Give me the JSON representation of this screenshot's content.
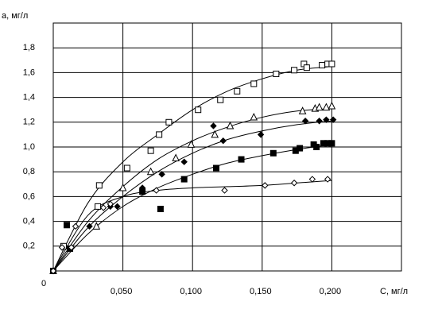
{
  "chart_data": {
    "type": "scatter",
    "x_label": "С, мг/л",
    "y_label": "а, мг/л",
    "xlim": [
      0,
      0.25
    ],
    "ylim": [
      0,
      2.0
    ],
    "xticks": [
      0,
      {
        "value": 0.05,
        "label": "0,050"
      },
      {
        "value": 0.1,
        "label": "0,100"
      },
      {
        "value": 0.15,
        "label": "0,150"
      },
      {
        "value": 0.2,
        "label": "0,200"
      }
    ],
    "yticks": [
      {
        "value": 0.2,
        "label": "0,2"
      },
      {
        "value": 0.4,
        "label": "0,4"
      },
      {
        "value": 0.6,
        "label": "0,6"
      },
      {
        "value": 0.8,
        "label": "0,8"
      },
      {
        "value": 1.0,
        "label": "1,0"
      },
      {
        "value": 1.2,
        "label": "1,2"
      },
      {
        "value": 1.4,
        "label": "1,4"
      },
      {
        "value": 1.6,
        "label": "1,6"
      },
      {
        "value": 1.8,
        "label": "1,8"
      }
    ],
    "grid": true,
    "series": [
      {
        "marker": "square-open",
        "color": "#000000",
        "x": [
          0,
          0.0074,
          0.032,
          0.033,
          0.053,
          0.07,
          0.076,
          0.083,
          0.104,
          0.12,
          0.132,
          0.144,
          0.16,
          0.173,
          0.18,
          0.182,
          0.193,
          0.197,
          0.2
        ],
        "values": [
          0,
          0.2,
          0.52,
          0.69,
          0.83,
          0.97,
          1.1,
          1.2,
          1.3,
          1.38,
          1.45,
          1.51,
          1.59,
          1.62,
          1.67,
          1.64,
          1.66,
          1.67,
          1.67
        ]
      },
      {
        "marker": "triangle-open",
        "color": "#000000",
        "x": [
          0,
          0.031,
          0.05,
          0.07,
          0.088,
          0.099,
          0.116,
          0.127,
          0.144,
          0.179,
          0.188,
          0.191,
          0.196,
          0.2
        ],
        "values": [
          0,
          0.36,
          0.67,
          0.8,
          0.91,
          1.02,
          1.1,
          1.17,
          1.24,
          1.29,
          1.31,
          1.32,
          1.32,
          1.33
        ]
      },
      {
        "marker": "diamond-filled",
        "color": "#000000",
        "x": [
          0,
          0.026,
          0.041,
          0.046,
          0.064,
          0.078,
          0.094,
          0.115,
          0.122,
          0.149,
          0.181,
          0.191,
          0.196,
          0.201
        ],
        "values": [
          0,
          0.36,
          0.52,
          0.52,
          0.67,
          0.78,
          0.88,
          1.17,
          1.05,
          1.1,
          1.21,
          1.21,
          1.22,
          1.22
        ]
      },
      {
        "marker": "square-filled",
        "color": "#000000",
        "x": [
          0,
          0.0097,
          0.012,
          0.064,
          0.077,
          0.094,
          0.117,
          0.135,
          0.158,
          0.174,
          0.177,
          0.187,
          0.189,
          0.194,
          0.197,
          0.2
        ],
        "values": [
          0,
          0.37,
          0.18,
          0.64,
          0.5,
          0.74,
          0.83,
          0.9,
          0.95,
          0.97,
          0.99,
          1.02,
          1.0,
          1.03,
          1.03,
          1.03
        ]
      },
      {
        "marker": "diamond-open",
        "color": "#000000",
        "x": [
          0,
          0.0063,
          0.013,
          0.016,
          0.036,
          0.041,
          0.074,
          0.123,
          0.152,
          0.173,
          0.186,
          0.197
        ],
        "values": [
          0,
          0.19,
          0.19,
          0.36,
          0.51,
          0.54,
          0.65,
          0.65,
          0.69,
          0.71,
          0.74,
          0.74
        ]
      }
    ],
    "curves": [
      {
        "color": "#000000",
        "x": [
          0,
          0.025,
          0.05,
          0.075,
          0.1,
          0.125,
          0.15,
          0.175,
          0.2
        ],
        "values": [
          0,
          0.55,
          0.88,
          1.1,
          1.3,
          1.45,
          1.55,
          1.62,
          1.65
        ]
      },
      {
        "color": "#000000",
        "x": [
          0,
          0.025,
          0.05,
          0.075,
          0.1,
          0.125,
          0.15,
          0.175,
          0.2
        ],
        "values": [
          0,
          0.4,
          0.68,
          0.9,
          1.05,
          1.16,
          1.24,
          1.29,
          1.31
        ]
      },
      {
        "color": "#000000",
        "x": [
          0,
          0.025,
          0.05,
          0.075,
          0.1,
          0.125,
          0.15,
          0.175,
          0.2
        ],
        "values": [
          0,
          0.35,
          0.6,
          0.8,
          0.95,
          1.06,
          1.13,
          1.18,
          1.21
        ]
      },
      {
        "color": "#000000",
        "x": [
          0,
          0.025,
          0.05,
          0.075,
          0.1,
          0.125,
          0.15,
          0.175,
          0.2
        ],
        "values": [
          0,
          0.3,
          0.52,
          0.67,
          0.78,
          0.87,
          0.93,
          0.98,
          1.02
        ]
      },
      {
        "color": "#000000",
        "x": [
          0,
          0.025,
          0.05,
          0.075,
          0.1,
          0.125,
          0.15,
          0.175,
          0.2
        ],
        "values": [
          0,
          0.45,
          0.6,
          0.65,
          0.67,
          0.68,
          0.69,
          0.71,
          0.73
        ]
      }
    ]
  }
}
